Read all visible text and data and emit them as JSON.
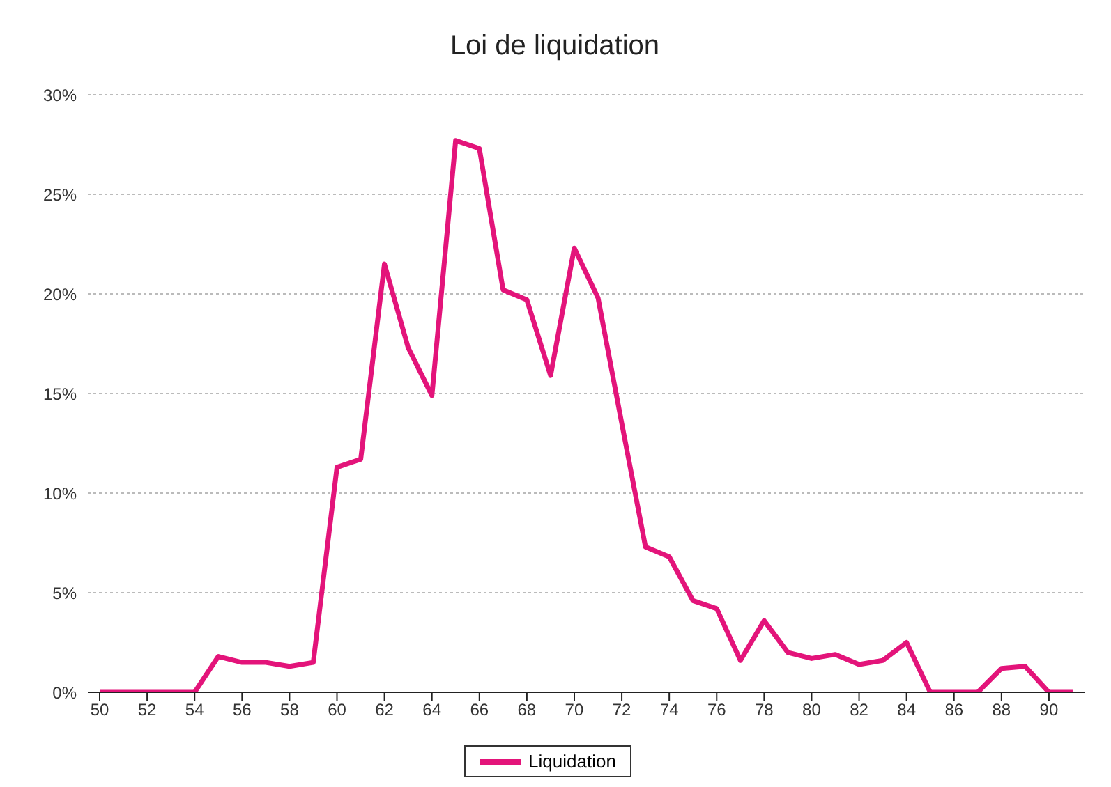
{
  "chart_data": {
    "type": "line",
    "title": "Loi de liquidation",
    "x": [
      50,
      51,
      52,
      53,
      54,
      55,
      56,
      57,
      58,
      59,
      60,
      61,
      62,
      63,
      64,
      65,
      66,
      67,
      68,
      69,
      70,
      71,
      72,
      73,
      74,
      75,
      76,
      77,
      78,
      79,
      80,
      81,
      82,
      83,
      84,
      85,
      86,
      87,
      88,
      89,
      90,
      91
    ],
    "series": [
      {
        "name": "Liquidation",
        "color": "#e3147a",
        "values": [
          0,
          0,
          0,
          0,
          0,
          1.8,
          1.5,
          1.5,
          1.3,
          1.5,
          11.3,
          11.7,
          21.5,
          17.3,
          14.9,
          27.7,
          27.3,
          20.2,
          19.7,
          15.9,
          22.3,
          19.8,
          13.5,
          7.3,
          6.8,
          4.6,
          4.2,
          1.6,
          3.6,
          2.0,
          1.7,
          1.9,
          1.4,
          1.6,
          2.5,
          0,
          0,
          0,
          1.2,
          1.3,
          0,
          0
        ]
      }
    ],
    "xlim": [
      49.5,
      91.5
    ],
    "xticks": [
      50,
      52,
      54,
      56,
      58,
      60,
      62,
      64,
      66,
      68,
      70,
      72,
      74,
      76,
      78,
      80,
      82,
      84,
      86,
      88,
      90
    ],
    "ylim": [
      0,
      30
    ],
    "yticks": [
      {
        "value": 0,
        "label": "0%"
      },
      {
        "value": 5,
        "label": "5%"
      },
      {
        "value": 10,
        "label": "10%"
      },
      {
        "value": 15,
        "label": "15%"
      },
      {
        "value": 20,
        "label": "20%"
      },
      {
        "value": 25,
        "label": "25%"
      },
      {
        "value": 30,
        "label": "30%"
      }
    ],
    "grid": "y",
    "legend": "bottom",
    "marker": "none",
    "line_style": "solid"
  }
}
